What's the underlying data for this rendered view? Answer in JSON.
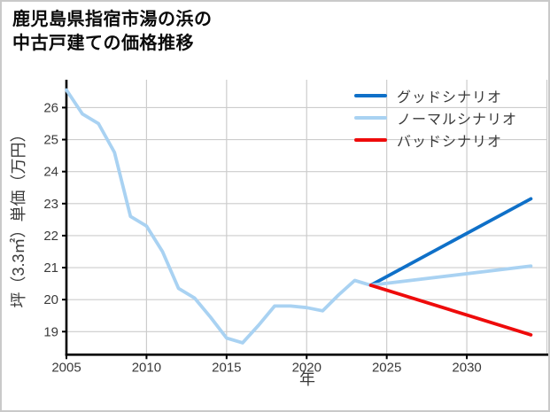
{
  "title": {
    "line1": "鹿児島県指宿市湯の浜の",
    "line2": "中古戸建ての価格推移"
  },
  "colors": {
    "good": "#0f70c8",
    "normal": "#a9d2f2",
    "bad": "#ee0b0b",
    "grid": "#cccccc",
    "spine": "#000000",
    "tick_text": "#3a3a3a"
  },
  "chart_data": {
    "type": "line",
    "title": "鹿児島県指宿市湯の浜の中古戸建ての価格推移",
    "xlabel": "年",
    "ylabel": "坪（3.3㎡）単価（万円）",
    "xlim": [
      2005,
      2035
    ],
    "ylim": [
      18.28,
      26.87
    ],
    "x_ticks": [
      2005,
      2010,
      2015,
      2020,
      2025,
      2030
    ],
    "y_ticks": [
      19,
      20,
      21,
      22,
      23,
      24,
      25,
      26
    ],
    "grid": true,
    "legend_position": "top-right",
    "history": {
      "color": "#a9d2f2",
      "x": [
        2005,
        2006,
        2007,
        2008,
        2009,
        2010,
        2011,
        2012,
        2013,
        2014,
        2015,
        2016,
        2017,
        2018,
        2019,
        2020,
        2021,
        2022,
        2023,
        2024
      ],
      "y": [
        26.55,
        25.8,
        25.5,
        24.6,
        22.6,
        22.3,
        21.5,
        20.35,
        20.05,
        19.45,
        18.8,
        18.65,
        19.2,
        19.8,
        19.8,
        19.75,
        19.65,
        20.15,
        20.6,
        20.45
      ]
    },
    "scenarios": [
      {
        "name": "グッドシナリオ",
        "color_key": "good",
        "color": "#0f70c8",
        "x": [
          2024,
          2034
        ],
        "y": [
          20.45,
          23.15
        ]
      },
      {
        "name": "ノーマルシナリオ",
        "color_key": "normal",
        "color": "#a9d2f2",
        "x": [
          2024,
          2034
        ],
        "y": [
          20.45,
          21.05
        ]
      },
      {
        "name": "バッドシナリオ",
        "color_key": "bad",
        "color": "#ee0b0b",
        "x": [
          2024,
          2034
        ],
        "y": [
          20.45,
          18.9
        ]
      }
    ]
  }
}
